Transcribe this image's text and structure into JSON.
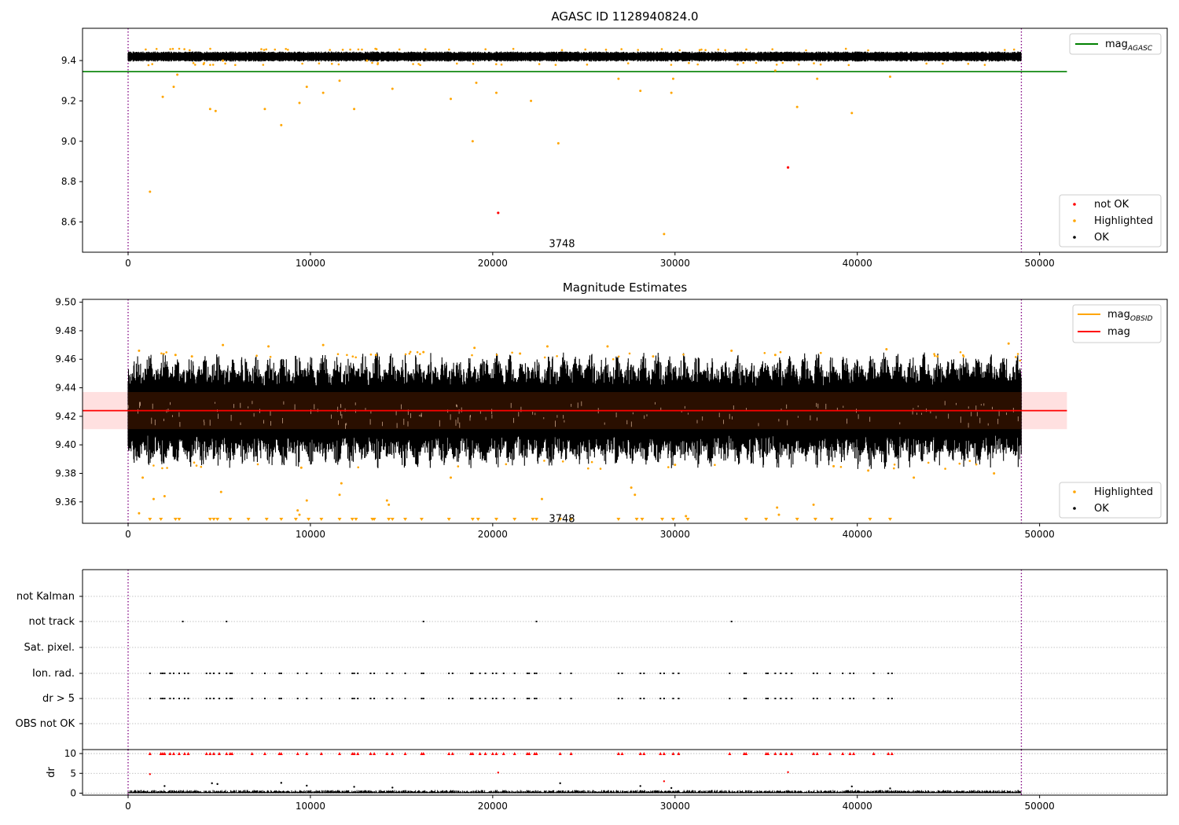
{
  "chart_data": [
    {
      "type": "scatter",
      "title": "AGASC ID 1128940824.0",
      "xlim": [
        -2500,
        57000
      ],
      "ylim": [
        8.45,
        9.56
      ],
      "xticks": [
        0,
        10000,
        20000,
        30000,
        40000,
        50000
      ],
      "xtick_labels": [
        "0",
        "10000",
        "20000",
        "30000",
        "40000",
        "50000"
      ],
      "yticks": [
        8.6,
        8.8,
        9.0,
        9.2,
        9.4
      ],
      "ytick_labels": [
        "8.6",
        "8.8",
        "9.0",
        "9.2",
        "9.4"
      ],
      "vlines": [
        0,
        49000
      ],
      "hline": {
        "name": "mag_AGASC",
        "value": 9.345,
        "x_end": 51500,
        "color": "#008000"
      },
      "ok_band": {
        "x_start": 0,
        "x_end": 49000,
        "y_center": 9.42,
        "amplitude": 0.025
      },
      "series": [
        {
          "name": "not OK",
          "color": "#ff0000",
          "points": [
            [
              20300,
              8.645
            ],
            [
              36200,
              8.87
            ]
          ]
        },
        {
          "name": "Highlighted",
          "color": "#ffa500",
          "points": [
            [
              1200,
              8.75
            ],
            [
              1900,
              9.22
            ],
            [
              2500,
              9.27
            ],
            [
              4500,
              9.16
            ],
            [
              4800,
              9.15
            ],
            [
              7500,
              9.16
            ],
            [
              8400,
              9.08
            ],
            [
              9400,
              9.19
            ],
            [
              9800,
              9.27
            ],
            [
              10700,
              9.24
            ],
            [
              11600,
              9.3
            ],
            [
              12400,
              9.16
            ],
            [
              14500,
              9.26
            ],
            [
              17700,
              9.21
            ],
            [
              18900,
              9.0
            ],
            [
              19100,
              9.29
            ],
            [
              20200,
              9.24
            ],
            [
              22100,
              9.2
            ],
            [
              23600,
              8.99
            ],
            [
              26900,
              9.31
            ],
            [
              28100,
              9.25
            ],
            [
              29400,
              8.54
            ],
            [
              29800,
              9.24
            ],
            [
              29900,
              9.31
            ],
            [
              36700,
              9.17
            ],
            [
              39700,
              9.14
            ],
            [
              37800,
              9.31
            ],
            [
              41800,
              9.32
            ],
            [
              2700,
              9.33
            ],
            [
              5200,
              9.4
            ],
            [
              13100,
              9.4
            ],
            [
              35500,
              9.35
            ]
          ]
        },
        {
          "name": "OK",
          "color": "#000000"
        }
      ],
      "annotation": {
        "text": "3748",
        "x": 23800,
        "y": 8.49
      },
      "legends": [
        [
          "mag_AGASC"
        ],
        [
          "not OK",
          "Highlighted",
          "OK"
        ]
      ]
    },
    {
      "type": "scatter",
      "title": "Magnitude Estimates",
      "xlim": [
        -2500,
        57000
      ],
      "ylim": [
        9.345,
        9.502
      ],
      "xticks": [
        0,
        10000,
        20000,
        30000,
        40000,
        50000
      ],
      "xtick_labels": [
        "0",
        "10000",
        "20000",
        "30000",
        "40000",
        "50000"
      ],
      "yticks": [
        9.36,
        9.38,
        9.4,
        9.42,
        9.44,
        9.46,
        9.48,
        9.5
      ],
      "ytick_labels": [
        "9.36",
        "9.38",
        "9.40",
        "9.42",
        "9.44",
        "9.46",
        "9.48",
        "9.50"
      ],
      "vlines": [
        0,
        49000
      ],
      "mag_line": {
        "name": "mag",
        "value": 9.424,
        "x_end": 51500,
        "color": "#ff0000"
      },
      "mag_band": {
        "y_low": 9.411,
        "y_high": 9.437,
        "x_end": 51500,
        "color": "#ffcccc"
      },
      "obsid_band": {
        "y_low": 9.411,
        "y_high": 9.437,
        "x_end": 49000,
        "color": "#2a0f00"
      },
      "series": [
        {
          "name": "Highlighted",
          "color": "#ffa500",
          "points": [
            [
              600,
              9.352
            ],
            [
              800,
              9.377
            ],
            [
              1400,
              9.362
            ],
            [
              2000,
              9.364
            ],
            [
              5100,
              9.367
            ],
            [
              9300,
              9.354
            ],
            [
              9400,
              9.351
            ],
            [
              9800,
              9.361
            ],
            [
              11600,
              9.365
            ],
            [
              11700,
              9.373
            ],
            [
              14200,
              9.361
            ],
            [
              14300,
              9.358
            ],
            [
              22700,
              9.362
            ],
            [
              27600,
              9.37
            ],
            [
              27800,
              9.365
            ],
            [
              30600,
              9.35
            ],
            [
              35600,
              9.356
            ],
            [
              35700,
              9.351
            ],
            [
              37600,
              9.358
            ],
            [
              600,
              9.466
            ],
            [
              2600,
              9.463
            ],
            [
              5200,
              9.47
            ],
            [
              7700,
              9.469
            ],
            [
              10700,
              9.47
            ],
            [
              16200,
              9.465
            ],
            [
              19000,
              9.468
            ],
            [
              23000,
              9.469
            ],
            [
              26300,
              9.469
            ],
            [
              28800,
              9.462
            ],
            [
              33100,
              9.466
            ],
            [
              35500,
              9.463
            ],
            [
              41600,
              9.467
            ],
            [
              48300,
              9.471
            ],
            [
              47500,
              9.38
            ],
            [
              43100,
              9.377
            ],
            [
              40600,
              9.382
            ],
            [
              17700,
              9.377
            ],
            [
              9500,
              9.384
            ],
            [
              30000,
              9.386
            ],
            [
              38700,
              9.385
            ],
            [
              3500,
              9.462
            ],
            [
              13600,
              9.463
            ],
            [
              21500,
              9.464
            ],
            [
              44400,
              9.462
            ]
          ]
        },
        {
          "name": "OK",
          "color": "#000000"
        }
      ],
      "clipped_markers_x": [
        1200,
        1800,
        2600,
        2800,
        4500,
        4700,
        4900,
        5600,
        6600,
        7600,
        8400,
        9200,
        9900,
        10600,
        11600,
        12300,
        12500,
        13400,
        13500,
        14300,
        14500,
        15200,
        16100,
        17600,
        18900,
        19200,
        20200,
        21200,
        22200,
        22400,
        23700,
        24300,
        26900,
        27900,
        28200,
        29300,
        29900,
        30700,
        33900,
        35000,
        36700,
        37700,
        38600,
        40700,
        41800
      ],
      "annotation": {
        "text": "3748",
        "x": 23800,
        "y": 9.348
      },
      "legends": [
        [
          "mag_OBSID",
          "mag"
        ],
        [
          "Highlighted",
          "OK"
        ]
      ]
    },
    {
      "type": "scatter",
      "xlim": [
        -2500,
        57000
      ],
      "categories": [
        "OBS not OK",
        "dr > 5",
        "Ion. rad.",
        "Sat. pixel.",
        "not track",
        "not Kalman"
      ],
      "vlines": [
        0,
        49000
      ],
      "flags": {
        "not track": [
          3000,
          5400,
          16200,
          22400,
          33100
        ],
        "Ion. rad.": [
          1200,
          1800,
          1900,
          2000,
          2300,
          2500,
          2800,
          3100,
          3300,
          4300,
          4500,
          4700,
          5000,
          5400,
          5600,
          5700,
          6800,
          7500,
          8300,
          8400,
          9300,
          9800,
          10600,
          11600,
          12300,
          12400,
          12600,
          13300,
          13500,
          14200,
          14500,
          15200,
          16100,
          16200,
          17600,
          17800,
          18800,
          18900,
          19300,
          19600,
          20000,
          20200,
          20600,
          21200,
          21900,
          22000,
          22300,
          22400,
          23700,
          24300,
          26900,
          27100,
          28100,
          28300,
          29200,
          29400,
          29900,
          30200,
          33000,
          33800,
          33900,
          35000,
          35100,
          35500,
          35800,
          36100,
          36400,
          37600,
          37800,
          38500,
          39200,
          39600,
          39800,
          40900,
          41700,
          41900
        ],
        "dr > 5": [
          1200,
          1800,
          1900,
          2000,
          2300,
          2500,
          2800,
          3100,
          3300,
          4300,
          4500,
          4700,
          5000,
          5400,
          5600,
          5700,
          6800,
          7500,
          8300,
          8400,
          9300,
          9800,
          10600,
          11600,
          12300,
          12400,
          12600,
          13300,
          13500,
          14200,
          14500,
          15200,
          16100,
          16200,
          17600,
          17800,
          18800,
          18900,
          19300,
          19600,
          20000,
          20200,
          20600,
          21200,
          21900,
          22000,
          22300,
          22400,
          23700,
          24300,
          26900,
          27100,
          28100,
          28300,
          29200,
          29400,
          29900,
          30200,
          33000,
          33800,
          33900,
          35000,
          35100,
          35500,
          35800,
          36100,
          36400,
          37600,
          37800,
          38500,
          39200,
          39600,
          39800,
          40900,
          41700,
          41900
        ]
      }
    },
    {
      "type": "scatter",
      "ylabel": "dr",
      "xlim": [
        -2500,
        57000
      ],
      "ylim": [
        -0.5,
        11
      ],
      "xticks": [
        0,
        10000,
        20000,
        30000,
        40000,
        50000
      ],
      "xtick_labels": [
        "0",
        "10000",
        "20000",
        "30000",
        "40000",
        "50000"
      ],
      "yticks": [
        0,
        5,
        10
      ],
      "ytick_labels": [
        "0",
        "5",
        "10"
      ],
      "vlines": [
        0,
        49000
      ],
      "clipped_high_x": [
        1200,
        1800,
        1900,
        2000,
        2300,
        2500,
        2800,
        3100,
        3300,
        4300,
        4500,
        4700,
        5000,
        5400,
        5600,
        5700,
        6800,
        7500,
        8300,
        8400,
        9300,
        9800,
        10600,
        11600,
        12300,
        12400,
        12600,
        13300,
        13500,
        14200,
        14500,
        15200,
        16100,
        16200,
        17600,
        17800,
        18800,
        18900,
        19300,
        19600,
        20000,
        20200,
        20600,
        21200,
        21900,
        22000,
        22300,
        22400,
        23700,
        24300,
        26900,
        27100,
        28100,
        28300,
        29200,
        29400,
        29900,
        30200,
        33000,
        33800,
        33900,
        35000,
        35100,
        35500,
        35800,
        36100,
        36400,
        37600,
        37800,
        38500,
        39200,
        39600,
        39800,
        40900,
        41700,
        41900
      ],
      "series": [
        {
          "name": "not OK",
          "color": "#ff0000",
          "points": [
            [
              1200,
              4.8
            ],
            [
              20300,
              5.2
            ],
            [
              29400,
              3.0
            ],
            [
              36200,
              5.3
            ]
          ]
        },
        {
          "name": "Highlighted",
          "color": "#000000",
          "points": [
            [
              2000,
              1.8
            ],
            [
              4600,
              2.5
            ],
            [
              4900,
              2.3
            ],
            [
              8400,
              2.6
            ],
            [
              9800,
              1.9
            ],
            [
              12400,
              1.6
            ],
            [
              14500,
              1.4
            ],
            [
              23700,
              2.5
            ],
            [
              28100,
              1.8
            ],
            [
              29800,
              1.3
            ],
            [
              39700,
              1.7
            ],
            [
              41800,
              1.2
            ]
          ]
        }
      ]
    }
  ]
}
